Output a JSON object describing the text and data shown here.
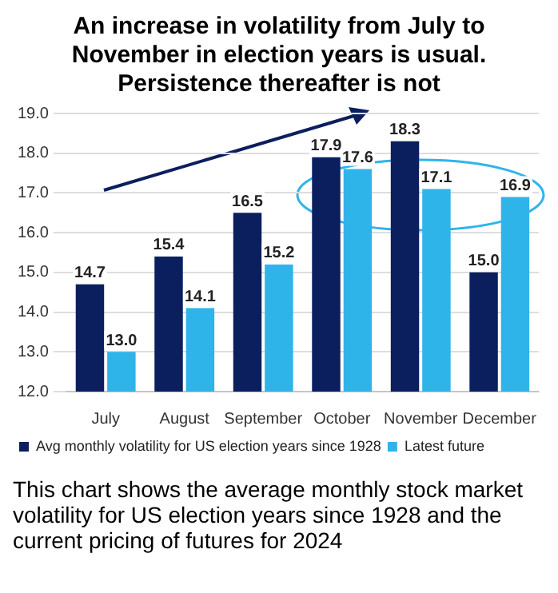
{
  "chart_data": {
    "type": "bar",
    "title": "An increase in volatility from July to November in election years is usual. Persistence thereafter is not",
    "categories": [
      "July",
      "August",
      "September",
      "October",
      "November",
      "December"
    ],
    "series": [
      {
        "name": "Avg monthly volatility for US election years since 1928",
        "color": "#0b1f5e",
        "values": [
          14.7,
          15.4,
          16.5,
          17.9,
          18.3,
          15.0
        ],
        "value_labels": [
          "14.7",
          "15.4",
          "16.5",
          "17.9",
          "18.3",
          "15.0"
        ]
      },
      {
        "name": "Latest future",
        "color": "#2fb4ea",
        "values": [
          13.0,
          14.1,
          15.2,
          17.6,
          17.1,
          16.9
        ],
        "value_labels": [
          "13.0",
          "14.1",
          "15.2",
          "17.6",
          "17.1",
          "16.9"
        ]
      }
    ],
    "ylim": [
      12,
      19
    ],
    "yticks": [
      {
        "value": 12,
        "label": "12.0"
      },
      {
        "value": 13,
        "label": "13.0"
      },
      {
        "value": 14,
        "label": "14.0"
      },
      {
        "value": 15,
        "label": "15.0"
      },
      {
        "value": 16,
        "label": "16.0"
      },
      {
        "value": 17,
        "label": "17.0"
      },
      {
        "value": 18,
        "label": "18.0"
      },
      {
        "value": 19,
        "label": "19.0"
      }
    ],
    "grid": "y",
    "legend": "bottom",
    "annotations": [
      "This chart shows the average monthly stock market volatility for US election years since 1928 and the current pricing of futures for 2024"
    ]
  }
}
